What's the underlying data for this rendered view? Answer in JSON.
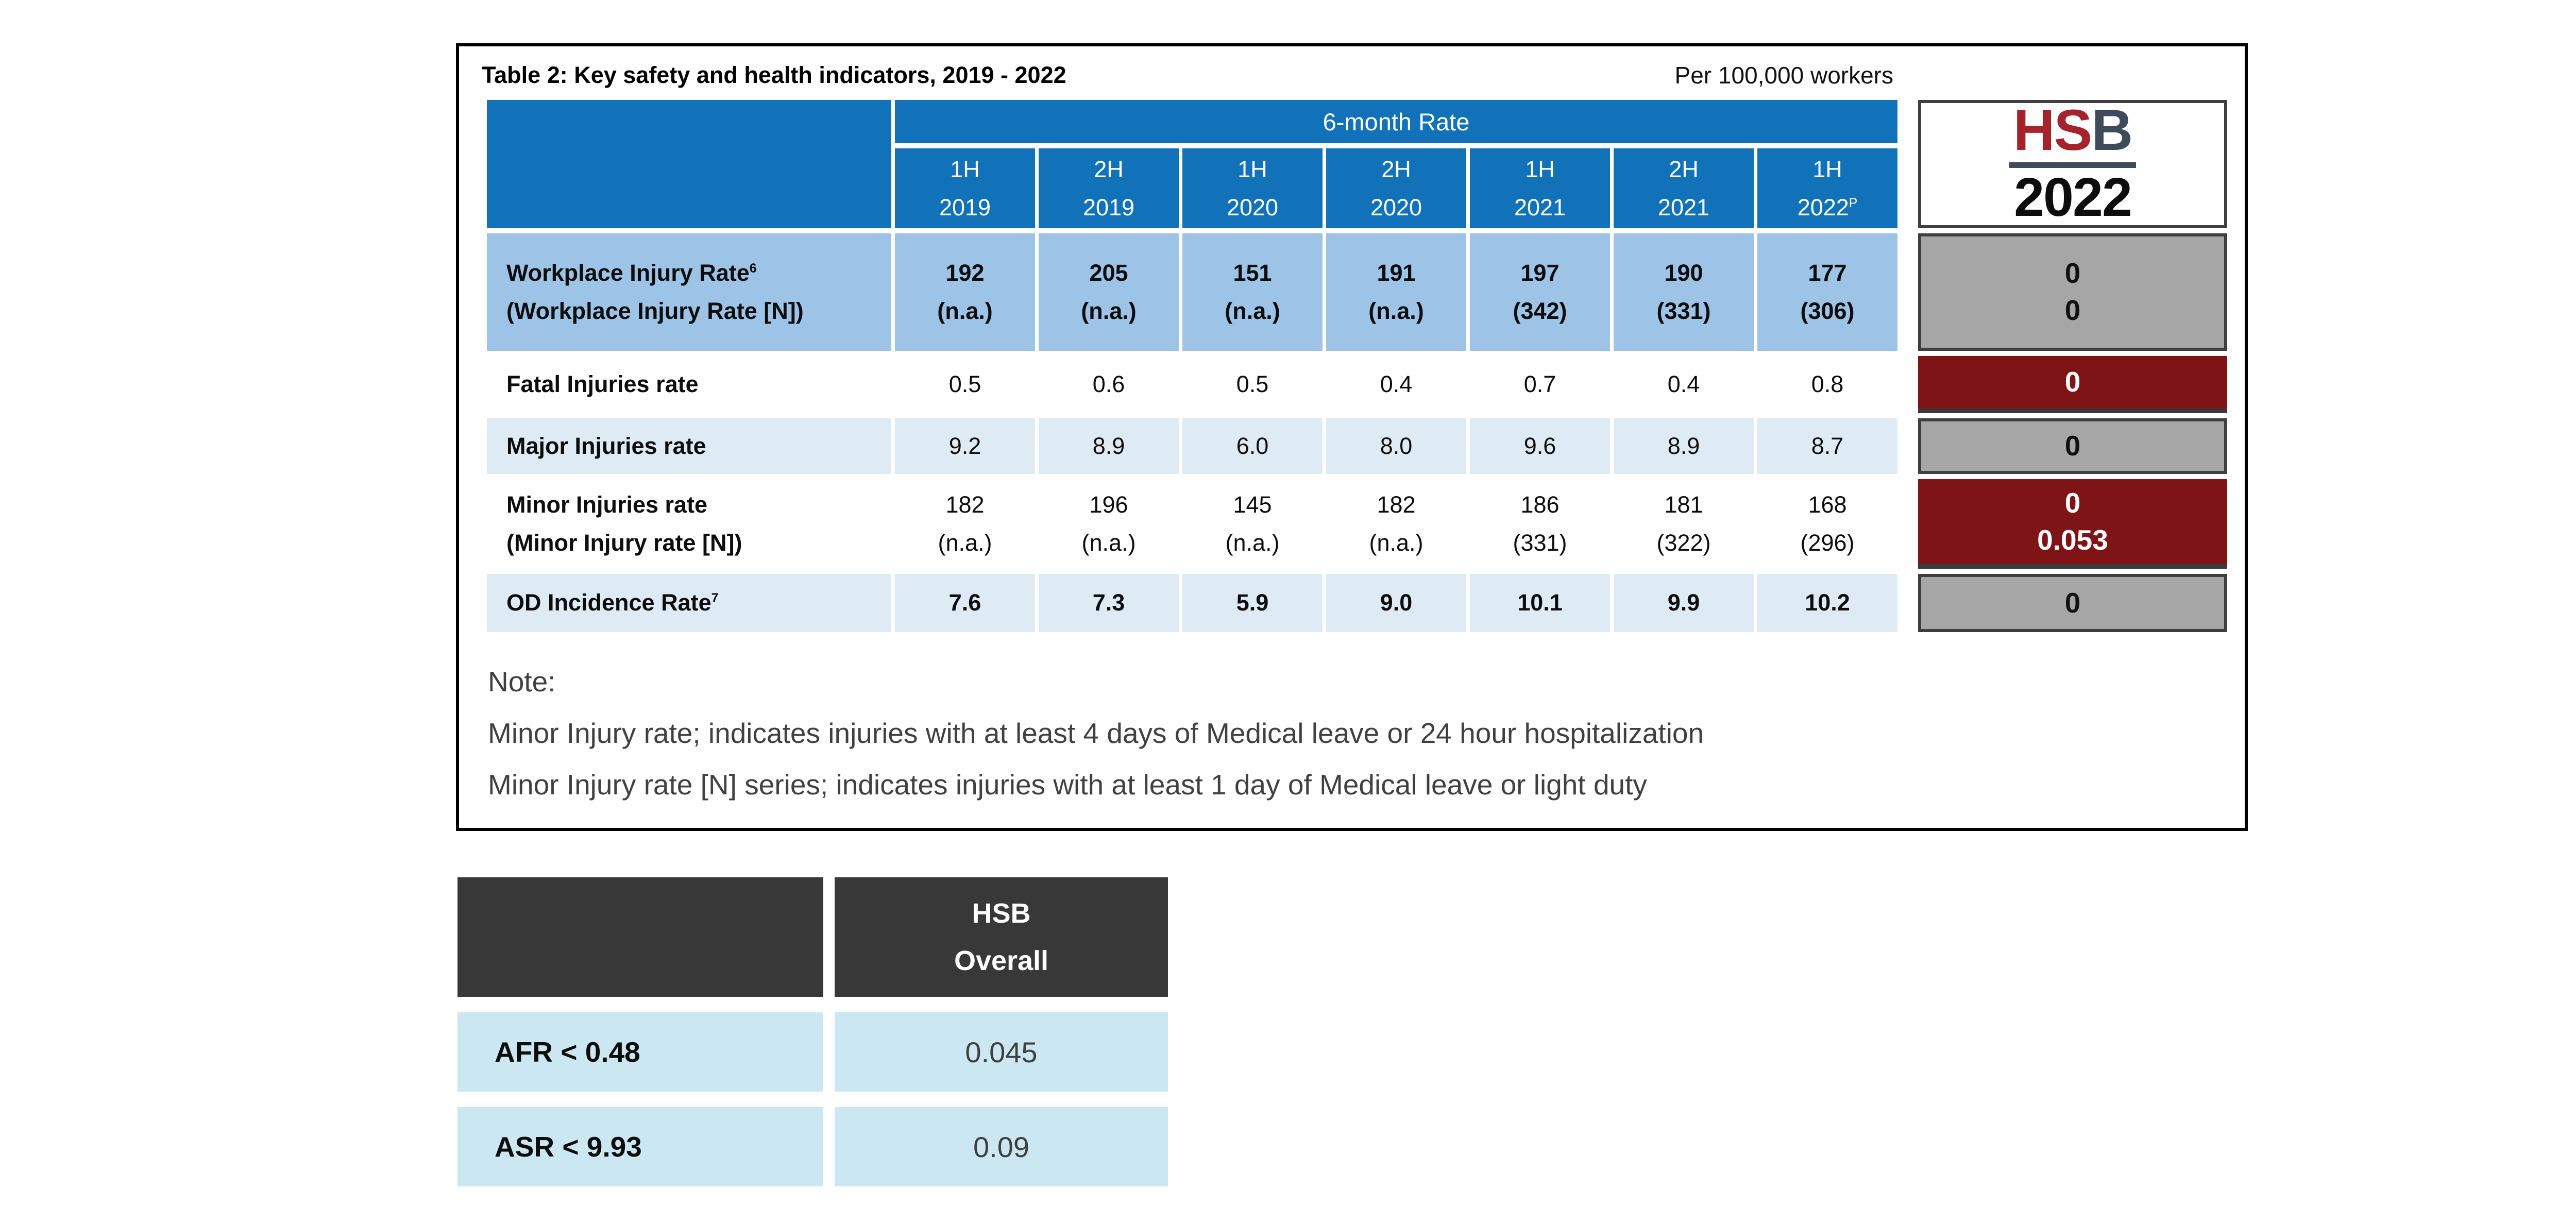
{
  "table1": {
    "title": "Table 2: Key safety and health indicators, 2019 - 2022",
    "unit_note": "Per 100,000 workers",
    "header": {
      "six_month": "6-month Rate",
      "columns": [
        {
          "half": "1H",
          "year": "2019"
        },
        {
          "half": "2H",
          "year": "2019"
        },
        {
          "half": "1H",
          "year": "2020"
        },
        {
          "half": "2H",
          "year": "2020"
        },
        {
          "half": "1H",
          "year": "2021"
        },
        {
          "half": "2H",
          "year": "2021"
        },
        {
          "half": "1H",
          "year": "2022",
          "sup": "P"
        }
      ]
    },
    "rows": [
      {
        "label": "Workplace Injury Rate",
        "label_sup": "6",
        "label2": "(Workplace Injury Rate [N])",
        "values": [
          "192",
          "205",
          "151",
          "191",
          "197",
          "190",
          "177"
        ],
        "values2": [
          "(n.a.)",
          "(n.a.)",
          "(n.a.)",
          "(n.a.)",
          "(342)",
          "(331)",
          "(306)"
        ],
        "summary": [
          "0",
          "0"
        ]
      },
      {
        "label": "Fatal Injuries rate",
        "values": [
          "0.5",
          "0.6",
          "0.5",
          "0.4",
          "0.7",
          "0.4",
          "0.8"
        ],
        "summary": [
          "0"
        ]
      },
      {
        "label": "Major Injuries rate",
        "values": [
          "9.2",
          "8.9",
          "6.0",
          "8.0",
          "9.6",
          "8.9",
          "8.7"
        ],
        "summary": [
          "0"
        ]
      },
      {
        "label": "Minor Injuries rate",
        "label2": "(Minor Injury rate [N])",
        "values": [
          "182",
          "196",
          "145",
          "182",
          "186",
          "181",
          "168"
        ],
        "values2": [
          "(n.a.)",
          "(n.a.)",
          "(n.a.)",
          "(n.a.)",
          "(331)",
          "(322)",
          "(296)"
        ],
        "summary": [
          "0",
          "0.053"
        ]
      },
      {
        "label": "OD Incidence Rate",
        "label_sup": "7",
        "values": [
          "7.6",
          "7.3",
          "5.9",
          "9.0",
          "10.1",
          "9.9",
          "10.2"
        ],
        "summary": [
          "0"
        ]
      }
    ],
    "logo": {
      "hs": "HS",
      "b": "B",
      "year": "2022"
    },
    "note": {
      "heading": "Note:",
      "line1": "Minor Injury rate; indicates injuries with at least 4 days of Medical leave or 24 hour hospitalization",
      "line2": "Minor Injury rate [N] series; indicates injuries with at least 1 day of Medical leave or light duty"
    }
  },
  "table2": {
    "header_line1": "HSB",
    "header_line2": "Overall",
    "rows": [
      {
        "label": "AFR < 0.48",
        "value": "0.045"
      },
      {
        "label": "ASR < 9.93",
        "value": "0.09"
      }
    ]
  },
  "colors": {
    "header_blue": "#1272B9",
    "row_light_blue": "#9DC3E6",
    "row_pale_blue": "#DEEBF5",
    "summary_gray": "#A6A6A6",
    "summary_red": "#7F1416",
    "charcoal": "#383838",
    "cyan": "#CBE8F2",
    "logo_red": "#A6232E",
    "logo_slate": "#3D4B5A"
  }
}
